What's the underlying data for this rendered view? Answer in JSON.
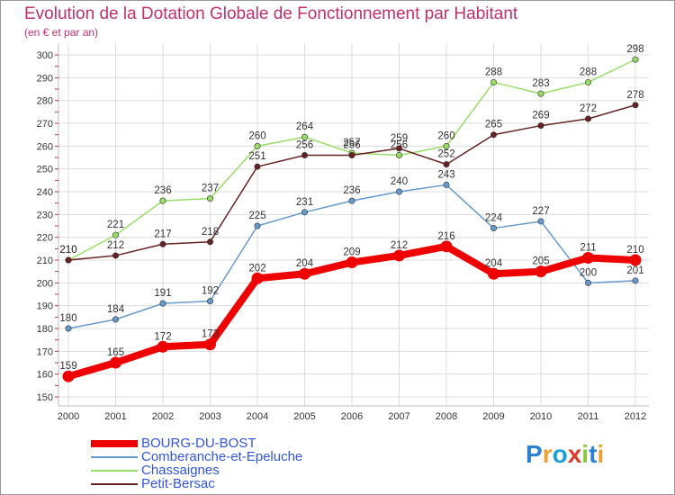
{
  "chart_data": {
    "type": "line",
    "title": "Evolution de la Dotation Globale de Fonctionnement par Habitant",
    "subtitle": "(en € et par an)",
    "xlabel": "",
    "ylabel": "",
    "categories": [
      "2000",
      "2001",
      "2002",
      "2003",
      "2004",
      "2005",
      "2006",
      "2007",
      "2008",
      "2009",
      "2010",
      "2011",
      "2012"
    ],
    "ylim": [
      150,
      300
    ],
    "yticks": [
      150,
      160,
      170,
      180,
      190,
      200,
      210,
      220,
      230,
      240,
      250,
      260,
      270,
      280,
      290,
      300
    ],
    "grid": true,
    "legend_position": "bottom-left",
    "series": [
      {
        "name": "BOURG-DU-BOST",
        "color": "#ee0000",
        "values": [
          159,
          165,
          172,
          173,
          202,
          204,
          209,
          212,
          216,
          204,
          205,
          211,
          210
        ]
      },
      {
        "name": "Comberanche-et-Epeluche",
        "color": "#6699cc",
        "values": [
          180,
          184,
          191,
          192,
          225,
          231,
          236,
          240,
          243,
          224,
          227,
          200,
          201
        ]
      },
      {
        "name": "Chassaignes",
        "color": "#99dd66",
        "values": [
          210,
          221,
          236,
          237,
          260,
          264,
          257,
          256,
          260,
          288,
          283,
          288,
          298
        ]
      },
      {
        "name": "Petit-Bersac",
        "color": "#662222",
        "values": [
          210,
          212,
          217,
          218,
          251,
          256,
          256,
          259,
          252,
          265,
          269,
          272,
          278
        ]
      }
    ]
  },
  "logo": {
    "letters": [
      "P",
      "r",
      "o",
      "x",
      "i",
      "t",
      "i"
    ],
    "colors": [
      "#2b7fd4",
      "#f0a030",
      "#1a9fd8",
      "#e03a2a",
      "#8cc63f",
      "#2b7fd4",
      "#f0a030"
    ]
  }
}
